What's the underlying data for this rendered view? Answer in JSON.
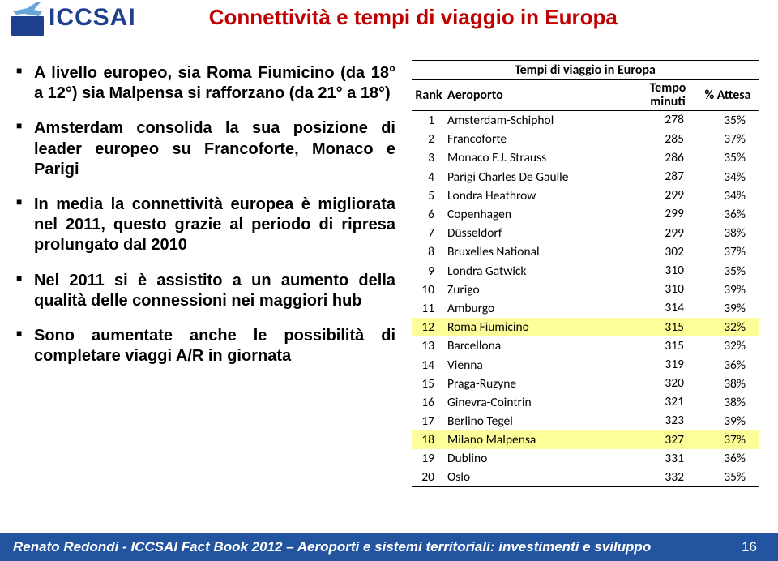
{
  "brand": {
    "logo_text": "ICCSAI",
    "logo_text_color": "#1f3f8f",
    "plane_color": "#6aa6d8",
    "rect_color": "#1f3f8f"
  },
  "title": {
    "text": "Connettività e tempi di viaggio in Europa",
    "color": "#c00000"
  },
  "bullets": [
    "A livello europeo, sia Roma Fiumicino (da 18° a 12°) sia Malpensa si rafforzano (da 21° a 18°)",
    "Amsterdam consolida la sua posizione di leader europeo su Francoforte, Monaco e Parigi",
    "In media la connettività europea è migliorata nel 2011, questo grazie al periodo di ripresa prolungato dal 2010",
    "Nel 2011 si è assistito a un aumento della qualità delle connessioni nei maggiori hub",
    " Sono aumentate anche le possibilità di completare viaggi A/R in giornata"
  ],
  "table": {
    "title": "Tempi di viaggio in Europa",
    "head_rank": "Rank",
    "head_airport": "Aeroporto",
    "head_time_l1": "Tempo",
    "head_time_l2": "minuti",
    "head_wait": "% Attesa",
    "rows": [
      {
        "rank": 1,
        "airport": "Amsterdam-Schiphol",
        "time": 278,
        "wait": "35%",
        "hl": false
      },
      {
        "rank": 2,
        "airport": "Francoforte",
        "time": 285,
        "wait": "37%",
        "hl": false
      },
      {
        "rank": 3,
        "airport": "Monaco F.J. Strauss",
        "time": 286,
        "wait": "35%",
        "hl": false
      },
      {
        "rank": 4,
        "airport": "Parigi Charles De Gaulle",
        "time": 287,
        "wait": "34%",
        "hl": false
      },
      {
        "rank": 5,
        "airport": "Londra Heathrow",
        "time": 299,
        "wait": "34%",
        "hl": false
      },
      {
        "rank": 6,
        "airport": "Copenhagen",
        "time": 299,
        "wait": "36%",
        "hl": false
      },
      {
        "rank": 7,
        "airport": "Düsseldorf",
        "time": 299,
        "wait": "38%",
        "hl": false
      },
      {
        "rank": 8,
        "airport": "Bruxelles National",
        "time": 302,
        "wait": "37%",
        "hl": false
      },
      {
        "rank": 9,
        "airport": "Londra Gatwick",
        "time": 310,
        "wait": "35%",
        "hl": false
      },
      {
        "rank": 10,
        "airport": "Zurigo",
        "time": 310,
        "wait": "39%",
        "hl": false
      },
      {
        "rank": 11,
        "airport": "Amburgo",
        "time": 314,
        "wait": "39%",
        "hl": false
      },
      {
        "rank": 12,
        "airport": "Roma Fiumicino",
        "time": 315,
        "wait": "32%",
        "hl": true
      },
      {
        "rank": 13,
        "airport": "Barcellona",
        "time": 315,
        "wait": "32%",
        "hl": false
      },
      {
        "rank": 14,
        "airport": "Vienna",
        "time": 319,
        "wait": "36%",
        "hl": false
      },
      {
        "rank": 15,
        "airport": "Praga-Ruzyne",
        "time": 320,
        "wait": "38%",
        "hl": false
      },
      {
        "rank": 16,
        "airport": "Ginevra-Cointrin",
        "time": 321,
        "wait": "38%",
        "hl": false
      },
      {
        "rank": 17,
        "airport": "Berlino Tegel",
        "time": 323,
        "wait": "39%",
        "hl": false
      },
      {
        "rank": 18,
        "airport": "Milano Malpensa",
        "time": 327,
        "wait": "37%",
        "hl": true
      },
      {
        "rank": 19,
        "airport": "Dublino",
        "time": 331,
        "wait": "36%",
        "hl": false
      },
      {
        "rank": 20,
        "airport": "Oslo",
        "time": 332,
        "wait": "35%",
        "hl": false
      }
    ]
  },
  "footer": {
    "text": "Renato Redondi - ICCSAI Fact Book 2012 – Aeroporti e sistemi territoriali: investimenti e sviluppo",
    "bg_color": "#2354a0",
    "page": "16"
  }
}
